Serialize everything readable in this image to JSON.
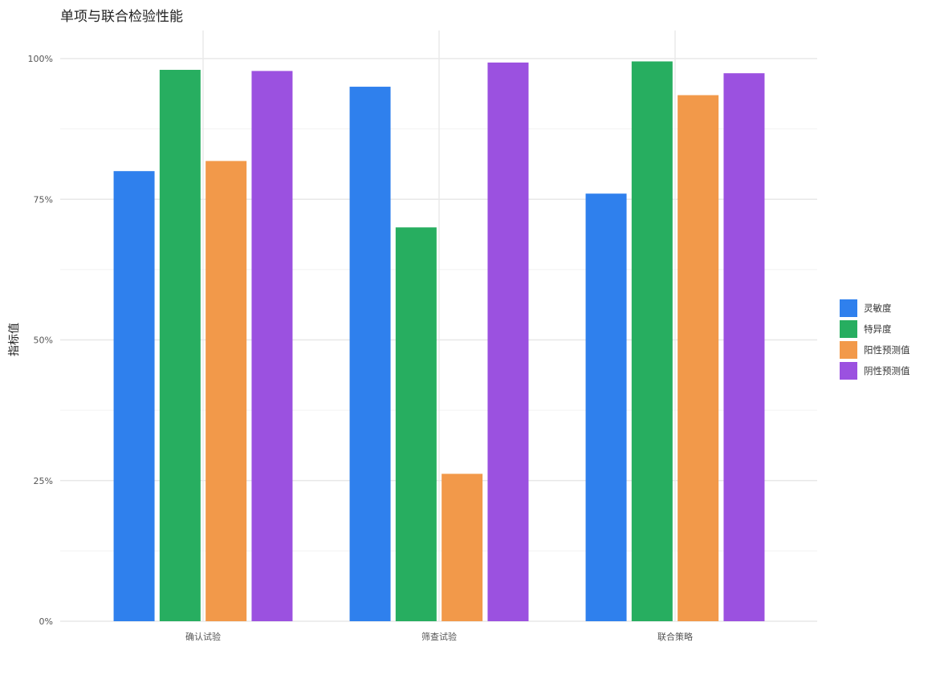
{
  "chart_data": {
    "type": "bar",
    "title": "单项与联合检验性能",
    "xlabel": "",
    "ylabel": "指标值",
    "categories": [
      "确认试验",
      "筛查试验",
      "联合策略"
    ],
    "series": [
      {
        "name": "灵敏度",
        "color": "#2f80ed",
        "values": [
          0.8,
          0.95,
          0.76
        ]
      },
      {
        "name": "特异度",
        "color": "#27ae60",
        "values": [
          0.98,
          0.7,
          0.995
        ]
      },
      {
        "name": "阳性预测值",
        "color": "#f2994a",
        "values": [
          0.818,
          0.262,
          0.935
        ]
      },
      {
        "name": "阴性预测值",
        "color": "#9b51e0",
        "values": [
          0.978,
          0.993,
          0.974
        ]
      }
    ],
    "ylim": [
      0,
      1
    ],
    "yticks": [
      0,
      0.25,
      0.5,
      0.75,
      1.0
    ],
    "ytick_labels": [
      "0%",
      "25%",
      "50%",
      "75%",
      "100%"
    ],
    "grid": true,
    "legend_position": "right"
  }
}
